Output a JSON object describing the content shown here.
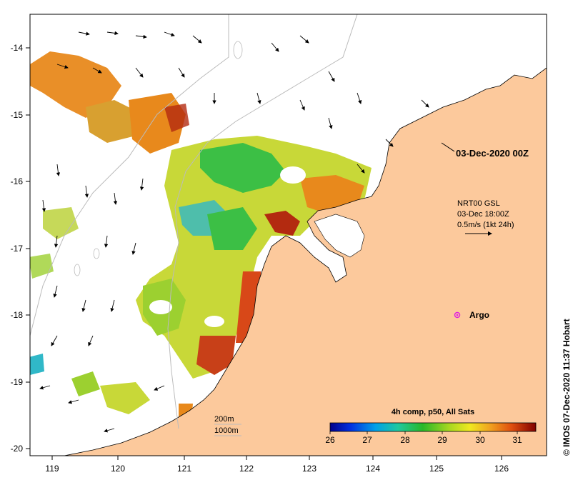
{
  "map": {
    "date_label": "03-Dec-2020 00Z",
    "current_info": {
      "line1": "NRT00 GSL",
      "line2": "03-Dec 18:00Z",
      "line3": "0.5m/s (1kt 24h)"
    },
    "argo_label": "Argo",
    "depth_legend": {
      "line1": "200m",
      "line2": "1000m"
    },
    "colorbar": {
      "title": "4h comp, p50, All Sats",
      "min": 26,
      "max": 31.5,
      "ticks": [
        "26",
        "27",
        "28",
        "29",
        "30",
        "31"
      ]
    },
    "credit": "© IMOS 07-Dec-2020 11:37 Hobart",
    "x_ticks": [
      "119",
      "120",
      "121",
      "122",
      "123",
      "124",
      "125",
      "126"
    ],
    "y_ticks": [
      "-14",
      "-15",
      "-16",
      "-17",
      "-18",
      "-19",
      "-20"
    ],
    "colors": {
      "land": "#fcc99c",
      "ocean": "#ffffff",
      "sst_warm": "#e8891c",
      "sst_hot": "#b32a10",
      "sst_mid": "#c8d838",
      "sst_cool": "#3cbf45",
      "argo": "#e020e0"
    }
  }
}
